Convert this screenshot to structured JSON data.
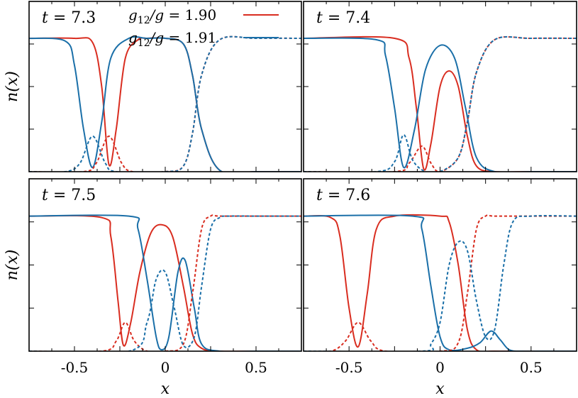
{
  "chart_data": [
    {
      "type": "line",
      "panel": "top-left",
      "title": "t = 7.3",
      "xlabel": "",
      "ylabel": "n(x)",
      "xlim": [
        -0.75,
        0.75
      ],
      "legend": [
        {
          "label": "g12/g = 1.90",
          "color": "#d92d20"
        },
        {
          "label": "g12/g = 1.91",
          "color": "#1a6fa8"
        }
      ],
      "series": [
        {
          "name": "g12/g = 1.90",
          "component": "solid",
          "color": "#d92d20",
          "style": "solid",
          "x": [
            -0.75,
            -0.5,
            -0.4,
            -0.35,
            -0.31,
            -0.27,
            -0.22,
            -0.15,
            -0.1,
            0.0,
            0.1,
            0.15,
            0.2,
            0.3,
            0.5,
            0.75
          ],
          "y": [
            0.94,
            0.94,
            0.91,
            0.6,
            0.05,
            0.3,
            0.8,
            0.93,
            0.94,
            0.94,
            0.9,
            0.68,
            0.3,
            0.01,
            0.0,
            0.0
          ]
        },
        {
          "name": "g12/g = 1.91",
          "component": "solid",
          "color": "#1a6fa8",
          "style": "solid",
          "x": [
            -0.75,
            -0.55,
            -0.5,
            -0.45,
            -0.4,
            -0.35,
            -0.3,
            -0.2,
            -0.1,
            0.0,
            0.1,
            0.15,
            0.2,
            0.3,
            0.5,
            0.75
          ],
          "y": [
            0.94,
            0.92,
            0.75,
            0.3,
            0.03,
            0.35,
            0.8,
            0.94,
            0.94,
            0.94,
            0.9,
            0.68,
            0.3,
            0.01,
            0.0,
            0.0
          ]
        },
        {
          "name": "g12/g = 1.90",
          "component": "dashed",
          "color": "#d92d20",
          "style": "dashed",
          "x": [
            -0.75,
            -0.45,
            -0.38,
            -0.31,
            -0.24,
            -0.18,
            0.0,
            0.1,
            0.15,
            0.2,
            0.3,
            0.5,
            0.75
          ],
          "y": [
            0.0,
            0.0,
            0.06,
            0.25,
            0.06,
            0.0,
            0.0,
            0.04,
            0.27,
            0.68,
            0.93,
            0.94,
            0.94
          ]
        },
        {
          "name": "g12/g = 1.91",
          "component": "dashed",
          "color": "#1a6fa8",
          "style": "dashed",
          "x": [
            -0.75,
            -0.55,
            -0.47,
            -0.4,
            -0.33,
            -0.27,
            0.0,
            0.1,
            0.15,
            0.2,
            0.3,
            0.5,
            0.75
          ],
          "y": [
            0.0,
            0.0,
            0.06,
            0.25,
            0.06,
            0.0,
            0.0,
            0.04,
            0.27,
            0.68,
            0.93,
            0.94,
            0.94
          ]
        }
      ]
    },
    {
      "type": "line",
      "panel": "top-right",
      "title": "t = 7.4",
      "xlabel": "",
      "ylabel": "",
      "xlim": [
        -0.75,
        0.75
      ],
      "series": [
        {
          "name": "g12/g = 1.90",
          "component": "solid",
          "color": "#d92d20",
          "style": "solid",
          "x": [
            -0.75,
            -0.25,
            -0.17,
            -0.13,
            -0.09,
            -0.05,
            0.0,
            0.05,
            0.1,
            0.15,
            0.2,
            0.3,
            0.5,
            0.75
          ],
          "y": [
            0.94,
            0.94,
            0.8,
            0.45,
            0.02,
            0.2,
            0.6,
            0.71,
            0.6,
            0.25,
            0.04,
            0.0,
            0.0,
            0.0
          ]
        },
        {
          "name": "g12/g = 1.91",
          "component": "solid",
          "color": "#1a6fa8",
          "style": "solid",
          "x": [
            -0.75,
            -0.35,
            -0.3,
            -0.25,
            -0.2,
            -0.14,
            -0.08,
            0.0,
            0.08,
            0.14,
            0.2,
            0.3,
            0.5,
            0.75
          ],
          "y": [
            0.94,
            0.93,
            0.82,
            0.45,
            0.03,
            0.3,
            0.72,
            0.89,
            0.8,
            0.45,
            0.1,
            0.0,
            0.0,
            0.0
          ]
        },
        {
          "name": "g12/g = 1.90",
          "component": "dashed",
          "color": "#d92d20",
          "style": "dashed",
          "x": [
            -0.75,
            -0.25,
            -0.17,
            -0.1,
            -0.05,
            0.0,
            0.1,
            0.15,
            0.2,
            0.3,
            0.5,
            0.75
          ],
          "y": [
            0.0,
            0.0,
            0.06,
            0.18,
            0.06,
            0.0,
            0.1,
            0.35,
            0.7,
            0.93,
            0.94,
            0.94
          ]
        },
        {
          "name": "g12/g = 1.91",
          "component": "dashed",
          "color": "#1a6fa8",
          "style": "dashed",
          "x": [
            -0.75,
            -0.35,
            -0.25,
            -0.2,
            -0.15,
            -0.08,
            0.0,
            0.1,
            0.15,
            0.2,
            0.3,
            0.5,
            0.75
          ],
          "y": [
            0.0,
            0.0,
            0.07,
            0.26,
            0.08,
            0.0,
            0.0,
            0.1,
            0.35,
            0.7,
            0.93,
            0.94,
            0.94
          ]
        }
      ]
    },
    {
      "type": "line",
      "panel": "bottom-left",
      "title": "t = 7.5",
      "xlabel": "x",
      "ylabel": "n(x)",
      "xlim": [
        -0.75,
        0.75
      ],
      "series": [
        {
          "name": "g12/g = 1.90",
          "component": "solid",
          "color": "#d92d20",
          "style": "solid",
          "x": [
            -0.75,
            -0.35,
            -0.3,
            -0.26,
            -0.23,
            -0.19,
            -0.14,
            -0.08,
            -0.02,
            0.04,
            0.1,
            0.15,
            0.2,
            0.3,
            0.5,
            0.75
          ],
          "y": [
            0.94,
            0.93,
            0.8,
            0.35,
            0.04,
            0.2,
            0.55,
            0.82,
            0.88,
            0.8,
            0.45,
            0.12,
            0.02,
            0.0,
            0.0,
            0.0
          ]
        },
        {
          "name": "g12/g = 1.91",
          "component": "solid",
          "color": "#1a6fa8",
          "style": "solid",
          "x": [
            -0.75,
            -0.2,
            -0.15,
            -0.1,
            -0.05,
            -0.02,
            0.02,
            0.07,
            0.11,
            0.16,
            0.2,
            0.3,
            0.5,
            0.75
          ],
          "y": [
            0.94,
            0.94,
            0.85,
            0.5,
            0.1,
            0.01,
            0.1,
            0.55,
            0.63,
            0.3,
            0.05,
            0.0,
            0.0,
            0.0
          ]
        },
        {
          "name": "g12/g = 1.90",
          "component": "dashed",
          "color": "#d92d20",
          "style": "dashed",
          "x": [
            -0.75,
            -0.35,
            -0.27,
            -0.22,
            -0.17,
            -0.1,
            0.0,
            0.1,
            0.15,
            0.2,
            0.25,
            0.3,
            0.5,
            0.75
          ],
          "y": [
            0.0,
            0.0,
            0.07,
            0.2,
            0.07,
            0.0,
            0.0,
            0.05,
            0.4,
            0.85,
            0.94,
            0.94,
            0.94,
            0.94
          ]
        },
        {
          "name": "g12/g = 1.91",
          "component": "dashed",
          "color": "#1a6fa8",
          "style": "dashed",
          "x": [
            -0.75,
            -0.2,
            -0.1,
            -0.05,
            0.0,
            0.05,
            0.1,
            0.16,
            0.2,
            0.25,
            0.3,
            0.35,
            0.5,
            0.75
          ],
          "y": [
            0.0,
            0.0,
            0.2,
            0.5,
            0.55,
            0.3,
            0.04,
            0.1,
            0.45,
            0.85,
            0.93,
            0.94,
            0.94,
            0.94
          ]
        }
      ]
    },
    {
      "type": "line",
      "panel": "bottom-right",
      "title": "t = 7.6",
      "xlabel": "x",
      "ylabel": "",
      "xlim": [
        -0.75,
        0.75
      ],
      "series": [
        {
          "name": "g12/g = 1.90",
          "component": "solid",
          "color": "#d92d20",
          "style": "solid",
          "x": [
            -0.75,
            -0.6,
            -0.55,
            -0.5,
            -0.45,
            -0.4,
            -0.35,
            -0.25,
            0.0,
            0.05,
            0.1,
            0.15,
            0.2,
            0.3,
            0.5,
            0.75
          ],
          "y": [
            0.94,
            0.93,
            0.8,
            0.3,
            0.03,
            0.4,
            0.85,
            0.94,
            0.94,
            0.9,
            0.6,
            0.15,
            0.01,
            0.0,
            0.0,
            0.0
          ]
        },
        {
          "name": "g12/g = 1.91",
          "component": "solid",
          "color": "#1a6fa8",
          "style": "solid",
          "x": [
            -0.75,
            -0.15,
            -0.1,
            -0.05,
            0.0,
            0.05,
            0.15,
            0.22,
            0.28,
            0.33,
            0.38,
            0.45,
            0.55,
            0.75
          ],
          "y": [
            0.94,
            0.94,
            0.85,
            0.45,
            0.1,
            0.01,
            0.02,
            0.06,
            0.14,
            0.08,
            0.01,
            0.0,
            0.0,
            0.0
          ]
        },
        {
          "name": "g12/g = 1.90",
          "component": "dashed",
          "color": "#d92d20",
          "style": "dashed",
          "x": [
            -0.75,
            -0.6,
            -0.52,
            -0.45,
            -0.38,
            -0.3,
            0.0,
            0.1,
            0.15,
            0.2,
            0.25,
            0.3,
            0.5,
            0.75
          ],
          "y": [
            0.0,
            0.0,
            0.07,
            0.2,
            0.07,
            0.0,
            0.0,
            0.06,
            0.4,
            0.85,
            0.94,
            0.94,
            0.94,
            0.94
          ]
        },
        {
          "name": "g12/g = 1.91",
          "component": "dashed",
          "color": "#1a6fa8",
          "style": "dashed",
          "x": [
            -0.75,
            -0.1,
            -0.05,
            0.0,
            0.05,
            0.1,
            0.15,
            0.2,
            0.25,
            0.3,
            0.35,
            0.4,
            0.5,
            0.75
          ],
          "y": [
            0.0,
            0.0,
            0.05,
            0.2,
            0.6,
            0.76,
            0.7,
            0.35,
            0.1,
            0.15,
            0.6,
            0.9,
            0.94,
            0.94
          ]
        }
      ]
    }
  ],
  "x_ticks": [
    -0.5,
    0,
    0.5
  ],
  "x_tick_labels": [
    "-0.5",
    "0",
    "0.5"
  ],
  "y_range": [
    0,
    1.2
  ]
}
